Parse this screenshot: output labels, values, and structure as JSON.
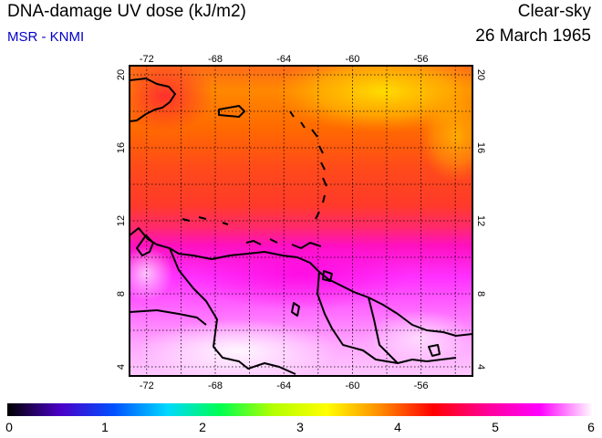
{
  "header": {
    "title": "DNA-damage UV dose (kJ/m2)",
    "subtitle": "MSR - KNMI",
    "sky_condition": "Clear-sky",
    "date": "26 March 1965"
  },
  "map": {
    "lon_range": [
      -73,
      -53
    ],
    "lat_range": [
      3.5,
      20.5
    ],
    "lon_ticks": [
      "-72",
      "-68",
      "-64",
      "-60",
      "-56"
    ],
    "lat_ticks": [
      "20",
      "16",
      "12",
      "8",
      "4"
    ],
    "grid": "dotted",
    "land_outline_color": "#000000"
  },
  "colorbar": {
    "min": 0,
    "max": 6,
    "labels": [
      "0",
      "1",
      "2",
      "3",
      "4",
      "5",
      "6"
    ],
    "colors": [
      "#000000",
      "#4b00c8",
      "#0050ff",
      "#00d8ff",
      "#00ff50",
      "#b4ff00",
      "#ffff00",
      "#ff8c00",
      "#ff0000",
      "#ff0096",
      "#ff00ff",
      "#ffffff"
    ]
  }
}
